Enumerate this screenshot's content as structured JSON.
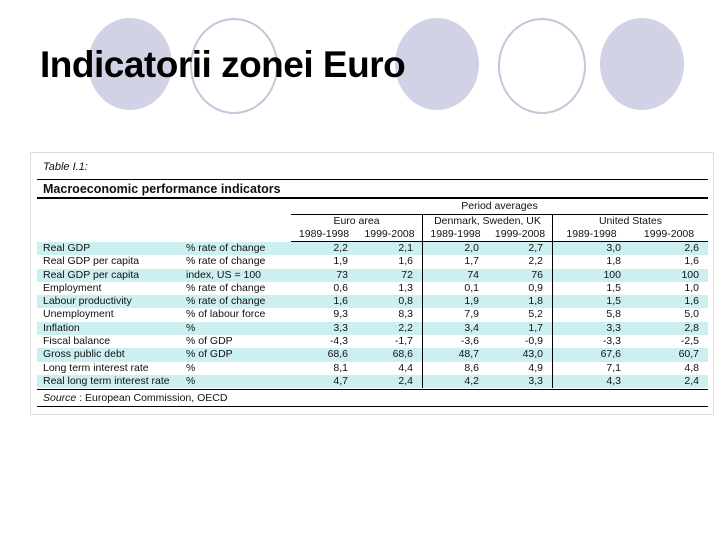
{
  "slide": {
    "title": "Indicatorii zonei Euro"
  },
  "table": {
    "caption": "Table I.1:",
    "title": "Macroeconomic performance indicators",
    "period_header": "Period averages",
    "groups": [
      "Euro area",
      "Denmark, Sweden, UK",
      "United States"
    ],
    "period_labels": [
      "1989-1998",
      "1999-2008"
    ],
    "rows": [
      {
        "indicator": "Real GDP",
        "unit": "% rate of change",
        "values": [
          "2,2",
          "2,1",
          "2,0",
          "2,7",
          "3,0",
          "2,6"
        ]
      },
      {
        "indicator": "Real GDP per capita",
        "unit": "% rate of change",
        "values": [
          "1,9",
          "1,6",
          "1,7",
          "2,2",
          "1,8",
          "1,6"
        ]
      },
      {
        "indicator": "Real GDP per capita",
        "unit": "index, US = 100",
        "values": [
          "73",
          "72",
          "74",
          "76",
          "100",
          "100"
        ]
      },
      {
        "indicator": "Employment",
        "unit": "% rate of change",
        "values": [
          "0,6",
          "1,3",
          "0,1",
          "0,9",
          "1,5",
          "1,0"
        ]
      },
      {
        "indicator": "Labour productivity",
        "unit": "% rate of change",
        "values": [
          "1,6",
          "0,8",
          "1,9",
          "1,8",
          "1,5",
          "1,6"
        ]
      },
      {
        "indicator": "Unemployment",
        "unit": "% of labour force",
        "values": [
          "9,3",
          "8,3",
          "7,9",
          "5,2",
          "5,8",
          "5,0"
        ]
      },
      {
        "indicator": "Inflation",
        "unit": "%",
        "values": [
          "3,3",
          "2,2",
          "3,4",
          "1,7",
          "3,3",
          "2,8"
        ]
      },
      {
        "indicator": "Fiscal balance",
        "unit": "% of GDP",
        "values": [
          "-4,3",
          "-1,7",
          "-3,6",
          "-0,9",
          "-3,3",
          "-2,5"
        ]
      },
      {
        "indicator": "Gross public debt",
        "unit": "% of GDP",
        "values": [
          "68,6",
          "68,6",
          "48,7",
          "43,0",
          "67,6",
          "60,7"
        ]
      },
      {
        "indicator": "Long term interest rate",
        "unit": "%",
        "values": [
          "8,1",
          "4,4",
          "8,6",
          "4,9",
          "7,1",
          "4,8"
        ]
      },
      {
        "indicator": "Real long term interest rate",
        "unit": "%",
        "values": [
          "4,7",
          "2,4",
          "4,2",
          "3,3",
          "4,3",
          "2,4"
        ]
      }
    ],
    "source_label": "Source",
    "source_rest": " : European Commission, OECD"
  },
  "colors": {
    "row_highlight": "#ccf0f2",
    "circle_fill": "#d2d2e6",
    "circle_outline": "#c6c6db",
    "rule": "#000000"
  }
}
